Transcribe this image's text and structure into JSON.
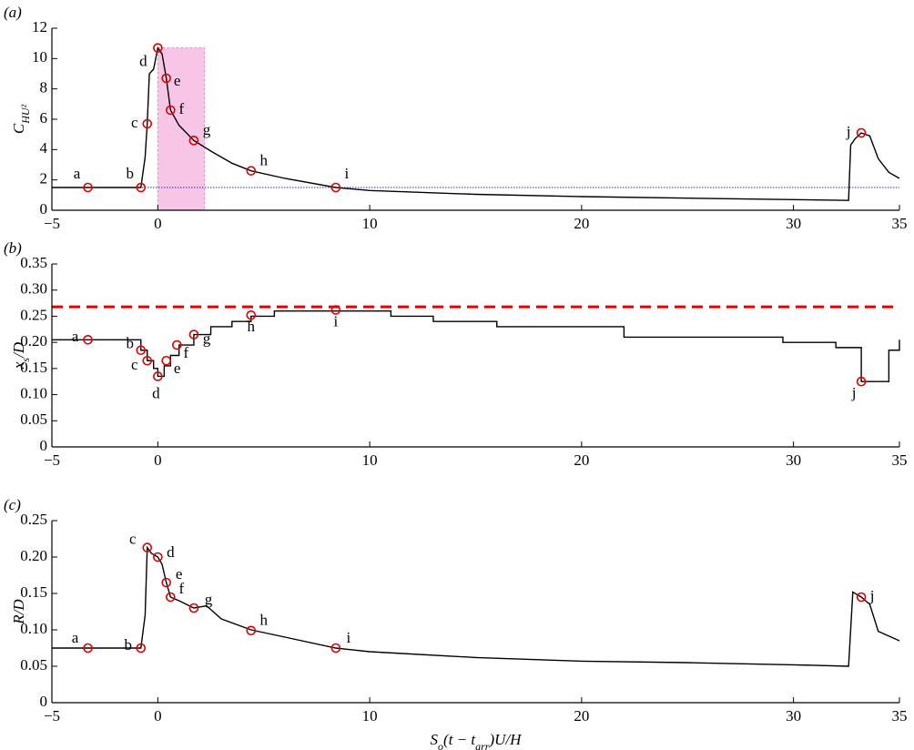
{
  "chart_data": [
    {
      "type": "line",
      "panel_label": "(a)",
      "ylabel_parts": [
        "C",
        "HU²"
      ],
      "xlim": [
        -5,
        35
      ],
      "xticks": [
        {
          "value": -5,
          "label": "−5"
        },
        0,
        10,
        20,
        30,
        35
      ],
      "ylim": [
        0,
        12
      ],
      "yticks": [
        0,
        2,
        4,
        6,
        8,
        10,
        12
      ],
      "highlight": {
        "x": [
          0,
          2.2
        ],
        "y": [
          0,
          10.7
        ],
        "color": "#f5b8e0"
      },
      "hline": {
        "y": 1.5,
        "color": "#2a2ad0",
        "style": "dotted"
      },
      "series": [
        {
          "color": "#000000",
          "step": false,
          "x": [
            -5,
            -0.8,
            -0.6,
            -0.5,
            -0.4,
            -0.2,
            0,
            0.2,
            0.4,
            0.6,
            1,
            1.7,
            2.5,
            3.5,
            4.4,
            6,
            8.4,
            10,
            15,
            20,
            25,
            30,
            32.6,
            32.7,
            32.9,
            33.2,
            33.6,
            34,
            34.5,
            35
          ],
          "values": [
            1.5,
            1.5,
            3.5,
            5.7,
            9.0,
            9.3,
            10.7,
            10.3,
            8.7,
            6.6,
            5.6,
            4.6,
            3.9,
            3.1,
            2.6,
            2.1,
            1.5,
            1.3,
            1.05,
            0.9,
            0.8,
            0.7,
            0.65,
            4.3,
            4.7,
            5.1,
            4.9,
            3.4,
            2.5,
            2.1
          ]
        }
      ],
      "points": {
        "color": "#e00000",
        "labels": [
          "a",
          "b",
          "c",
          "d",
          "e",
          "f",
          "g",
          "h",
          "i",
          "j"
        ],
        "x": [
          -3.3,
          -0.8,
          -0.5,
          0,
          0.4,
          0.6,
          1.7,
          4.4,
          8.4,
          33.2
        ],
        "y": [
          1.5,
          1.5,
          5.7,
          10.7,
          8.7,
          6.6,
          4.6,
          2.6,
          1.5,
          5.1
        ]
      }
    },
    {
      "type": "line",
      "panel_label": "(b)",
      "ylabel_parts": [
        "x",
        "s",
        "/D"
      ],
      "xlim": [
        -5,
        35
      ],
      "xticks": [
        {
          "value": -5,
          "label": "−5"
        },
        0,
        10,
        20,
        30,
        35
      ],
      "ylim": [
        0,
        0.35
      ],
      "yticks": [
        0,
        0.05,
        {
          "value": 0.1,
          "label": "0.10"
        },
        0.15,
        {
          "value": 0.2,
          "label": "0.20"
        },
        0.25,
        {
          "value": 0.3,
          "label": "0.30"
        },
        0.35
      ],
      "hline": {
        "y": 0.268,
        "color": "#e00000",
        "style": "dashed"
      },
      "series": [
        {
          "color": "#000000",
          "step": true,
          "x": [
            -5,
            -1.5,
            -0.8,
            -0.5,
            -0.2,
            0,
            0.3,
            0.6,
            1,
            1.7,
            2.5,
            3.5,
            4.4,
            5.5,
            8.4,
            11,
            13,
            16,
            22,
            29.5,
            32,
            33.2,
            34.5,
            35
          ],
          "values": [
            0.205,
            0.205,
            0.185,
            0.165,
            0.15,
            0.135,
            0.155,
            0.175,
            0.195,
            0.215,
            0.23,
            0.24,
            0.25,
            0.26,
            0.26,
            0.25,
            0.24,
            0.23,
            0.21,
            0.2,
            0.19,
            0.125,
            0.185,
            0.205
          ]
        }
      ],
      "points": {
        "color": "#e00000",
        "labels": [
          "a",
          "b",
          "c",
          "d",
          "e",
          "f",
          "g",
          "h",
          "i",
          "j"
        ],
        "x": [
          -3.3,
          -0.8,
          -0.5,
          0,
          0.4,
          0.9,
          1.7,
          4.4,
          8.4,
          33.2
        ],
        "y": [
          0.205,
          0.185,
          0.165,
          0.135,
          0.165,
          0.195,
          0.215,
          0.252,
          0.262,
          0.125
        ]
      }
    },
    {
      "type": "line",
      "panel_label": "(c)",
      "ylabel_parts": [
        "R/D"
      ],
      "xlabel_parts": [
        "S",
        "o",
        "(t − t",
        "arr",
        ")U/H"
      ],
      "xlim": [
        -5,
        35
      ],
      "xticks": [
        {
          "value": -5,
          "label": "−5"
        },
        0,
        10,
        20,
        30,
        35
      ],
      "ylim": [
        0,
        0.25
      ],
      "yticks": [
        0,
        0.05,
        {
          "value": 0.1,
          "label": "0.10"
        },
        0.15,
        {
          "value": 0.2,
          "label": "0.20"
        },
        0.25
      ],
      "series": [
        {
          "color": "#000000",
          "step": false,
          "x": [
            -5,
            -0.8,
            -0.6,
            -0.5,
            -0.3,
            0,
            0.2,
            0.4,
            0.6,
            1,
            1.7,
            2.3,
            3,
            4.4,
            6,
            8.4,
            10,
            15,
            20,
            25,
            30,
            32.6,
            32.8,
            33.2,
            33.6,
            34,
            35
          ],
          "values": [
            0.075,
            0.075,
            0.12,
            0.213,
            0.205,
            0.2,
            0.19,
            0.165,
            0.145,
            0.14,
            0.13,
            0.133,
            0.115,
            0.1,
            0.09,
            0.075,
            0.07,
            0.062,
            0.057,
            0.055,
            0.052,
            0.05,
            0.152,
            0.145,
            0.135,
            0.098,
            0.085
          ]
        }
      ],
      "points": {
        "color": "#e00000",
        "labels": [
          "a",
          "b",
          "c",
          "d",
          "e",
          "f",
          "g",
          "h",
          "i",
          "j"
        ],
        "x": [
          -3.3,
          -0.8,
          -0.5,
          0,
          0.4,
          0.6,
          1.7,
          4.4,
          8.4,
          33.2
        ],
        "y": [
          0.075,
          0.075,
          0.213,
          0.2,
          0.165,
          0.145,
          0.13,
          0.099,
          0.075,
          0.145
        ]
      }
    }
  ]
}
